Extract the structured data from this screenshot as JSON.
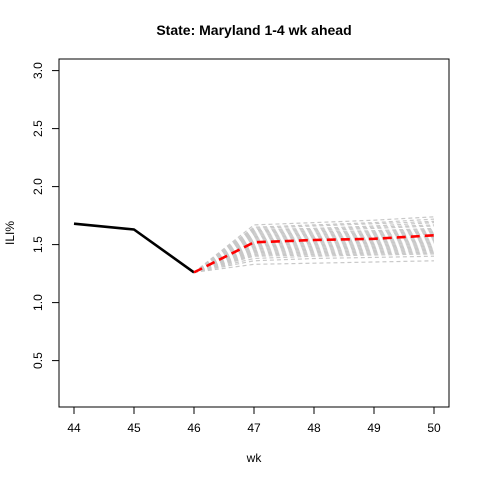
{
  "chart_data": {
    "type": "line",
    "title": "State: Maryland 1-4 wk ahead",
    "xlabel": "wk",
    "ylabel": "ILI%",
    "xlim": [
      44,
      50
    ],
    "ylim": [
      0.1,
      3.1
    ],
    "x_ticks": [
      44,
      45,
      46,
      47,
      48,
      49,
      50
    ],
    "y_ticks": [
      0.5,
      1.0,
      1.5,
      2.0,
      2.5,
      3.0
    ],
    "y_tick_labels": [
      "0.5",
      "1.0",
      "1.5",
      "2.0",
      "2.5",
      "3.0"
    ],
    "grid": false,
    "series": [
      {
        "role": "observed",
        "color": "#000000",
        "style": "solid",
        "x": [
          44,
          45,
          46
        ],
        "values": [
          1.68,
          1.63,
          1.26
        ]
      },
      {
        "role": "forecast-median",
        "color": "#ff0000",
        "style": "dashed",
        "x": [
          46,
          47,
          48,
          49,
          50
        ],
        "values": [
          1.26,
          1.52,
          1.54,
          1.55,
          1.58
        ]
      }
    ],
    "ensemble": {
      "role": "forecast-trajectories",
      "color": "#c8c8c8",
      "style": "dashed",
      "x": [
        46,
        47,
        48,
        49,
        50
      ],
      "trajectories": [
        [
          1.26,
          1.67,
          1.69,
          1.71,
          1.74
        ],
        [
          1.26,
          1.65,
          1.67,
          1.69,
          1.72
        ],
        [
          1.26,
          1.64,
          1.66,
          1.68,
          1.7
        ],
        [
          1.26,
          1.63,
          1.64,
          1.66,
          1.69
        ],
        [
          1.26,
          1.62,
          1.63,
          1.65,
          1.67
        ],
        [
          1.26,
          1.61,
          1.62,
          1.64,
          1.66
        ],
        [
          1.26,
          1.6,
          1.61,
          1.62,
          1.64
        ],
        [
          1.26,
          1.59,
          1.6,
          1.61,
          1.63
        ],
        [
          1.26,
          1.58,
          1.59,
          1.6,
          1.62
        ],
        [
          1.26,
          1.57,
          1.58,
          1.59,
          1.61
        ],
        [
          1.26,
          1.56,
          1.57,
          1.58,
          1.6
        ],
        [
          1.26,
          1.55,
          1.56,
          1.57,
          1.59
        ],
        [
          1.26,
          1.54,
          1.55,
          1.56,
          1.57
        ],
        [
          1.26,
          1.53,
          1.54,
          1.55,
          1.56
        ],
        [
          1.26,
          1.52,
          1.53,
          1.54,
          1.55
        ],
        [
          1.26,
          1.51,
          1.52,
          1.53,
          1.54
        ],
        [
          1.26,
          1.5,
          1.51,
          1.52,
          1.53
        ],
        [
          1.26,
          1.49,
          1.5,
          1.51,
          1.52
        ],
        [
          1.26,
          1.48,
          1.49,
          1.5,
          1.51
        ],
        [
          1.26,
          1.47,
          1.48,
          1.49,
          1.5
        ],
        [
          1.26,
          1.46,
          1.47,
          1.48,
          1.49
        ],
        [
          1.26,
          1.45,
          1.46,
          1.47,
          1.48
        ],
        [
          1.26,
          1.44,
          1.45,
          1.46,
          1.47
        ],
        [
          1.26,
          1.43,
          1.44,
          1.45,
          1.46
        ],
        [
          1.26,
          1.42,
          1.43,
          1.44,
          1.45
        ],
        [
          1.26,
          1.41,
          1.42,
          1.43,
          1.44
        ],
        [
          1.26,
          1.4,
          1.41,
          1.42,
          1.43
        ],
        [
          1.26,
          1.38,
          1.4,
          1.41,
          1.42
        ],
        [
          1.26,
          1.36,
          1.38,
          1.39,
          1.4
        ],
        [
          1.26,
          1.33,
          1.34,
          1.35,
          1.36
        ]
      ]
    }
  }
}
